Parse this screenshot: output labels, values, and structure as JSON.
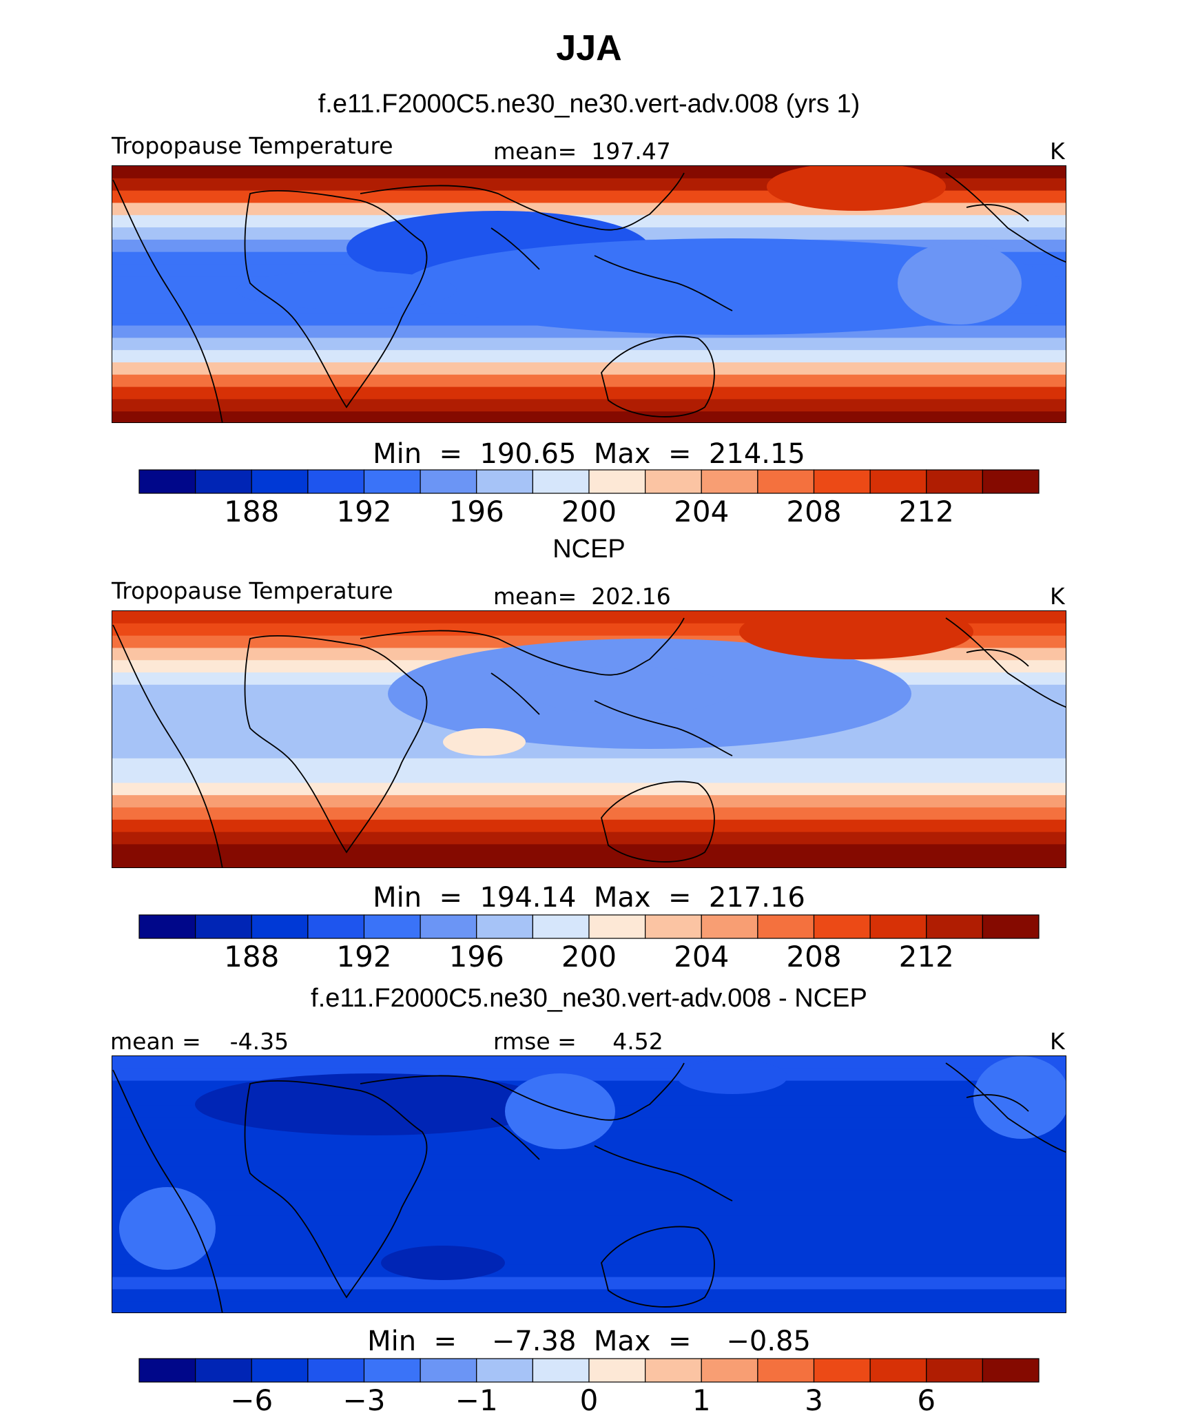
{
  "title": "JJA",
  "colors": [
    "#00078a",
    "#0025b5",
    "#0039d6",
    "#1e55ee",
    "#3a73f8",
    "#6b95f5",
    "#a6c3f7",
    "#d6e6fb",
    "#fde8d6",
    "#fbc4a3",
    "#f89e73",
    "#f4713e",
    "#ec4a16",
    "#d73106",
    "#b01d02",
    "#850a00"
  ],
  "chart_data": [
    {
      "type": "heatmap",
      "panel_title": "f.e11.F2000C5.ne30_ne30.vert-adv.008 (yrs 1)",
      "variable": "Tropopause Temperature",
      "stat_text": "mean=  197.47",
      "mean": 197.47,
      "units": "K",
      "minmax_text": "Min  =  190.65  Max  =  214.15",
      "min": 190.65,
      "max": 214.15,
      "colorbar_levels": [
        186,
        188,
        190,
        192,
        194,
        196,
        198,
        200,
        202,
        204,
        206,
        208,
        210,
        212,
        214
      ],
      "tick_labels": [
        "188",
        "192",
        "196",
        "200",
        "204",
        "208",
        "212"
      ],
      "tick_positions": [
        2,
        4,
        6,
        8,
        10,
        12,
        14
      ],
      "field_profile": [
        214,
        212,
        208,
        203,
        199,
        196,
        194,
        193,
        192,
        192,
        192,
        193,
        193,
        194,
        196,
        199,
        203,
        207,
        210,
        212,
        214
      ]
    },
    {
      "type": "heatmap",
      "panel_title": "NCEP",
      "variable": "Tropopause Temperature",
      "stat_text": "mean=  202.16",
      "mean": 202.16,
      "units": "K",
      "minmax_text": "Min  =  194.14  Max  =  217.16",
      "min": 194.14,
      "max": 217.16,
      "colorbar_levels": [
        186,
        188,
        190,
        192,
        194,
        196,
        198,
        200,
        202,
        204,
        206,
        208,
        210,
        212,
        214
      ],
      "tick_labels": [
        "188",
        "192",
        "196",
        "200",
        "204",
        "208",
        "212"
      ],
      "tick_positions": [
        2,
        4,
        6,
        8,
        10,
        12,
        14
      ],
      "field_profile": [
        210,
        208,
        206,
        203,
        200,
        198,
        197,
        196.5,
        196,
        196,
        196.5,
        197,
        198,
        199,
        201,
        204,
        207,
        210,
        212,
        215,
        216
      ]
    },
    {
      "type": "heatmap",
      "panel_title": "f.e11.F2000C5.ne30_ne30.vert-adv.008 - NCEP",
      "variable": "",
      "stat_text": "mean =    -4.35",
      "rmse_text": "rmse =     4.52",
      "mean": -4.35,
      "rmse": 4.52,
      "units": "K",
      "minmax_text": "Min  =    −7.38  Max  =    −0.85",
      "min": -7.38,
      "max": -0.85,
      "colorbar_levels": [
        -8,
        -6,
        -4,
        -3,
        -2,
        -1,
        -0.5,
        0,
        0.5,
        1,
        2,
        3,
        4,
        6,
        8
      ],
      "tick_labels": [
        "−6",
        "−3",
        "−1",
        "0",
        "1",
        "3",
        "6"
      ],
      "tick_positions": [
        2,
        4,
        6,
        8,
        10,
        12,
        14
      ],
      "field_profile": [
        -3.5,
        -4,
        -5,
        -5.5,
        -5,
        -4.5,
        -4.3,
        -4.2,
        -4.4,
        -4.6,
        -4.5,
        -4.3,
        -4.2,
        -4.4,
        -4.6,
        -4.8,
        -5,
        -4.5,
        -4,
        -4.2,
        -4.4
      ]
    }
  ]
}
